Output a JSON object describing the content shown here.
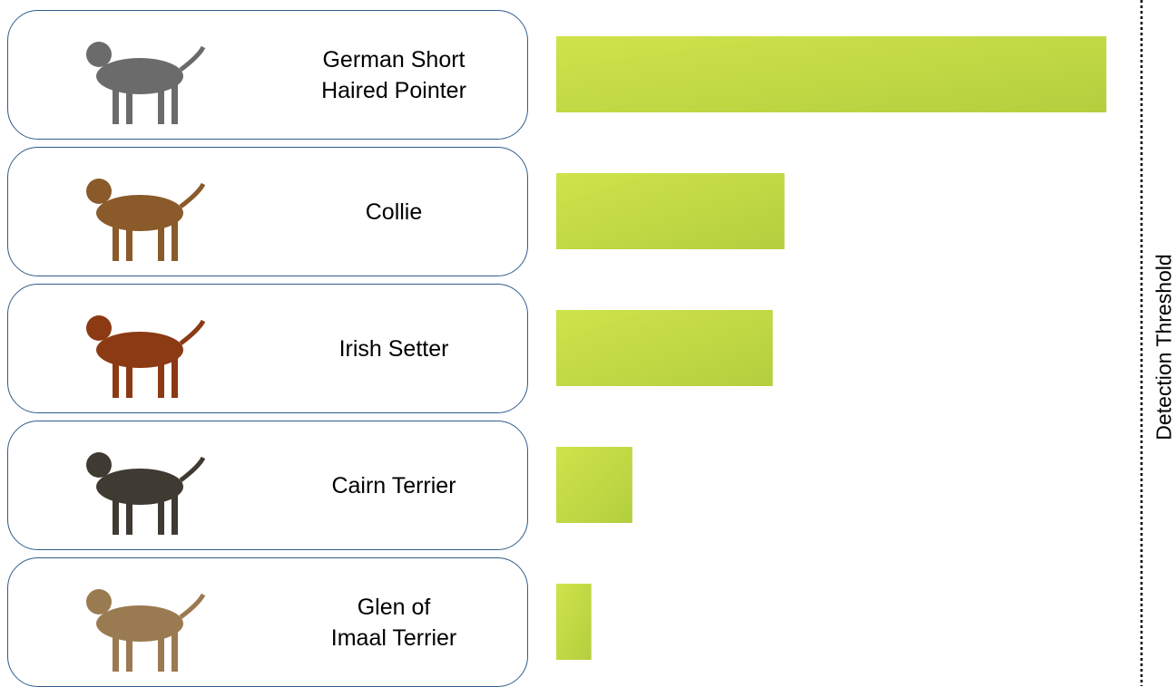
{
  "chart_data": {
    "type": "bar",
    "orientation": "horizontal",
    "categories": [
      "German Short\nHaired Pointer",
      "Collie",
      "Irish Setter",
      "Cairn Terrier",
      "Glen of\nImaal Terrier"
    ],
    "values": [
      0.94,
      0.39,
      0.37,
      0.13,
      0.06
    ],
    "dog_colors": [
      "#6b6b6b",
      "#8a5a2b",
      "#8b3a14",
      "#3f3a32",
      "#9a7a50"
    ],
    "color": "#c2dc44",
    "xlim": [
      0,
      1
    ],
    "threshold": {
      "value": 1,
      "label": "Detection Threshold"
    }
  }
}
